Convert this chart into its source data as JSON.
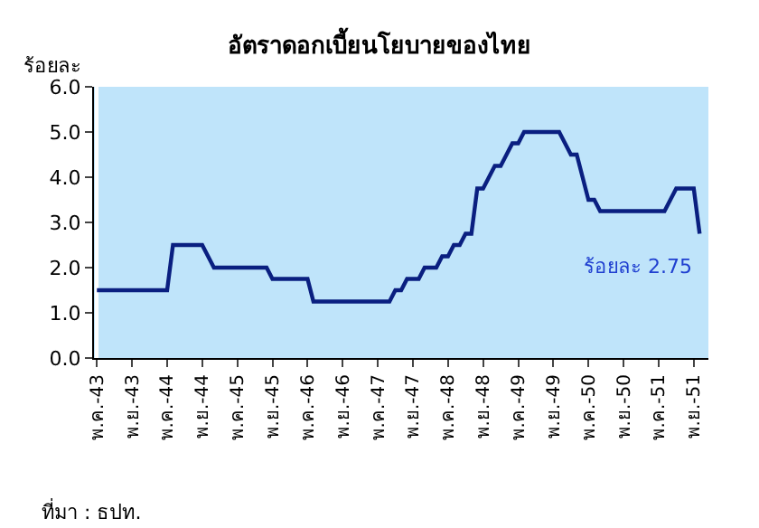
{
  "chart_data": {
    "type": "line",
    "title": "อัตราดอกเบี้ยนโยบายของไทย",
    "ylabel": "ร้อยละ",
    "categories": [
      "พ.ค.-43",
      null,
      null,
      null,
      null,
      null,
      "พ.ย.-43",
      null,
      null,
      null,
      null,
      null,
      "พ.ค.-44",
      null,
      null,
      null,
      null,
      null,
      "พ.ย.-44",
      null,
      null,
      null,
      null,
      null,
      "พ.ค.-45",
      null,
      null,
      null,
      null,
      null,
      "พ.ย.-45",
      null,
      null,
      null,
      null,
      null,
      "พ.ค.-46",
      null,
      null,
      null,
      null,
      null,
      "พ.ย.-46",
      null,
      null,
      null,
      null,
      null,
      "พ.ค.-47",
      null,
      null,
      null,
      null,
      null,
      "พ.ย.-47",
      null,
      null,
      null,
      null,
      null,
      "พ.ค.-48",
      null,
      null,
      null,
      null,
      null,
      "พ.ย.-48",
      null,
      null,
      null,
      null,
      null,
      "พ.ค.-49",
      null,
      null,
      null,
      null,
      null,
      "พ.ย.-49",
      null,
      null,
      null,
      null,
      null,
      "พ.ค.-50",
      null,
      null,
      null,
      null,
      null,
      "พ.ย.-50",
      null,
      null,
      null,
      null,
      null,
      "พ.ค.-51",
      null,
      null,
      null,
      null,
      null,
      "พ.ย.-51",
      null
    ],
    "series": [
      {
        "color": "#0a1f80",
        "values": [
          1.5,
          1.5,
          1.5,
          1.5,
          1.5,
          1.5,
          1.5,
          1.5,
          1.5,
          1.5,
          1.5,
          1.5,
          1.5,
          2.5,
          2.5,
          2.5,
          2.5,
          2.5,
          2.5,
          2.25,
          2.0,
          2.0,
          2.0,
          2.0,
          2.0,
          2.0,
          2.0,
          2.0,
          2.0,
          2.0,
          1.75,
          1.75,
          1.75,
          1.75,
          1.75,
          1.75,
          1.75,
          1.25,
          1.25,
          1.25,
          1.25,
          1.25,
          1.25,
          1.25,
          1.25,
          1.25,
          1.25,
          1.25,
          1.25,
          1.25,
          1.25,
          1.5,
          1.5,
          1.75,
          1.75,
          1.75,
          2.0,
          2.0,
          2.0,
          2.25,
          2.25,
          2.5,
          2.5,
          2.75,
          2.75,
          3.75,
          3.75,
          4.0,
          4.25,
          4.25,
          4.5,
          4.75,
          4.75,
          5.0,
          5.0,
          5.0,
          5.0,
          5.0,
          5.0,
          5.0,
          4.75,
          4.5,
          4.5,
          4.0,
          3.5,
          3.5,
          3.25,
          3.25,
          3.25,
          3.25,
          3.25,
          3.25,
          3.25,
          3.25,
          3.25,
          3.25,
          3.25,
          3.25,
          3.5,
          3.75,
          3.75,
          3.75,
          3.75,
          2.75
        ]
      }
    ],
    "ylim": [
      0,
      6
    ],
    "yticks": [
      {
        "value": 0,
        "label": "0.0"
      },
      {
        "value": 1,
        "label": "1.0"
      },
      {
        "value": 2,
        "label": "2.0"
      },
      {
        "value": 3,
        "label": "3.0"
      },
      {
        "value": 4,
        "label": "4.0"
      },
      {
        "value": 5,
        "label": "5.0"
      },
      {
        "value": 6,
        "label": "6.0"
      }
    ],
    "grid": false,
    "marker": "none",
    "line_style": "solid",
    "annotations": [
      "ร้อยละ 2.75",
      "ที่มา : ธปท."
    ]
  }
}
